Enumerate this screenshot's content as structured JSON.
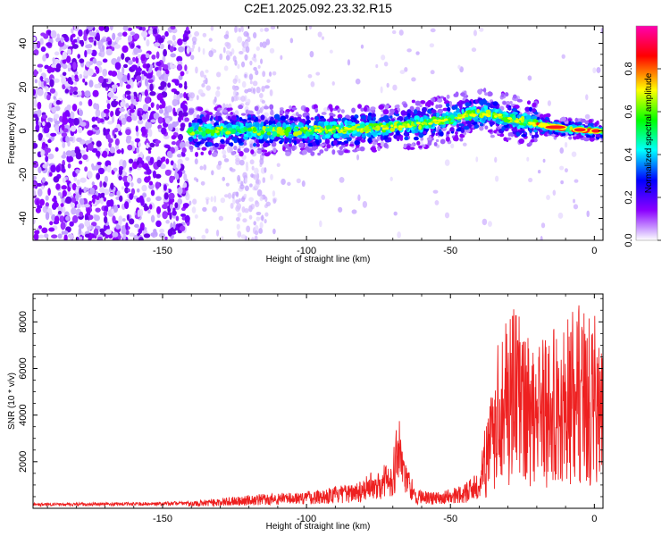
{
  "title": "C2E1.2025.092.23.32.R15",
  "chart_data": [
    {
      "type": "heatmap",
      "xlabel": "Height of straight line (km)",
      "ylabel": "Frequency (Hz)",
      "xlim": [
        -195,
        3
      ],
      "ylim": [
        -50,
        48
      ],
      "xticks": [
        -150,
        -100,
        -50,
        0
      ],
      "yticks": [
        -40,
        -20,
        0,
        20,
        40
      ],
      "colorbar": {
        "label": "Normalized spectral amplitude",
        "range": [
          0,
          1
        ],
        "ticks": [
          "0.0",
          "0.2",
          "0.4",
          "0.6",
          "0.8"
        ],
        "colors": [
          "#ffffff",
          "#8b00ff",
          "#0000ff",
          "#00ffff",
          "#00ff00",
          "#ffff00",
          "#ff0000",
          "#ff00b0"
        ]
      },
      "ridge": {
        "description_points_x": [
          -141,
          -120,
          -100,
          -80,
          -60,
          -40,
          -30,
          -20,
          -10,
          0,
          3
        ],
        "description_points_y": [
          0,
          0,
          0,
          1,
          3,
          8,
          6,
          3,
          1,
          0,
          0
        ]
      },
      "noise_region_x": [
        -195,
        -141
      ],
      "grid": false
    },
    {
      "type": "line",
      "xlabel": "Height of straight line (km)",
      "ylabel": "SNR (10 * v/v)",
      "xlim": [
        -195,
        3
      ],
      "ylim": [
        0,
        9200
      ],
      "xticks": [
        -150,
        -100,
        -50,
        0
      ],
      "yticks": [
        2000,
        4000,
        6000,
        8000
      ],
      "color": "#ee2020",
      "envelope": {
        "x": [
          -195,
          -150,
          -141,
          -120,
          -100,
          -85,
          -75,
          -70,
          -68,
          -66,
          -62,
          -55,
          -45,
          -40,
          -36,
          -32,
          -28,
          -20,
          -10,
          -5,
          0,
          3
        ],
        "y": [
          180,
          220,
          250,
          500,
          650,
          900,
          1500,
          2000,
          3800,
          2000,
          700,
          600,
          900,
          1500,
          4500,
          8500,
          8000,
          7000,
          7500,
          8500,
          7800,
          6000
        ]
      },
      "grid": false
    }
  ]
}
